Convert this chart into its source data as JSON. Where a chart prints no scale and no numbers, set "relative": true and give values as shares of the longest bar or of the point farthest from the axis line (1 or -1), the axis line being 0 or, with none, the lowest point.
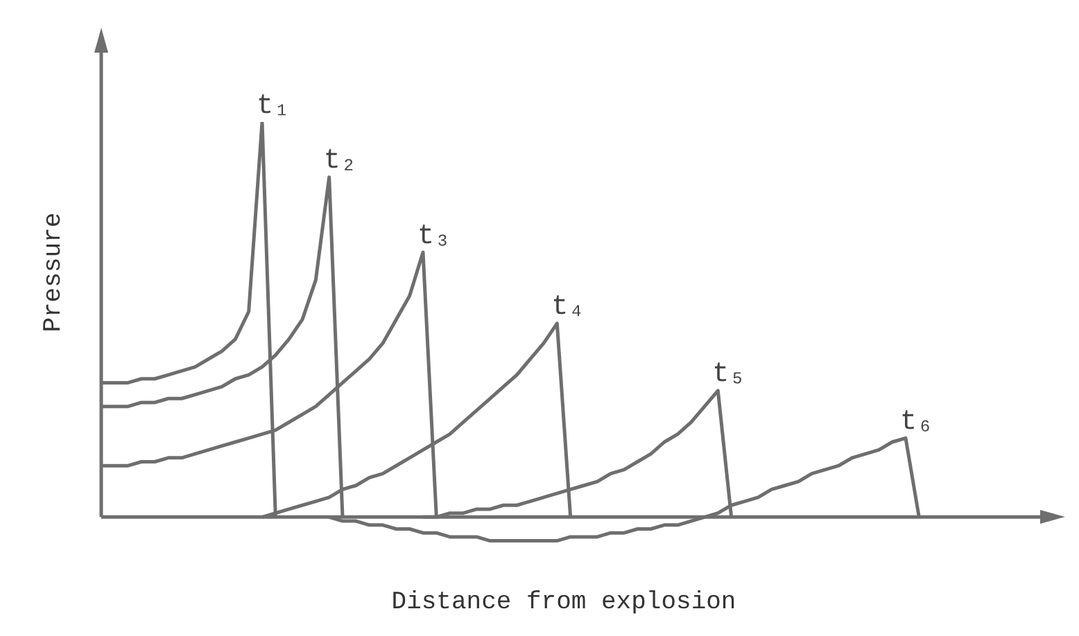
{
  "chart_data": {
    "type": "line",
    "relative": true,
    "xlabel": "Distance from explosion",
    "ylabel": "Pressure",
    "marker": "none",
    "legend": false,
    "categories": [
      null,
      null,
      null,
      null,
      null,
      null,
      null,
      null,
      null,
      null,
      null,
      null,
      null,
      null,
      null,
      null,
      null,
      null,
      null,
      null,
      null,
      null,
      null,
      null,
      null,
      null,
      null,
      null,
      null,
      null,
      null,
      null,
      null,
      null,
      null,
      null,
      null,
      null,
      null,
      null,
      null,
      null,
      null,
      null,
      null,
      null,
      null,
      null,
      null,
      null,
      null,
      null,
      null,
      null,
      null,
      null,
      null,
      null,
      null,
      null,
      null,
      null,
      null,
      null,
      null,
      null,
      null,
      null,
      null,
      null
    ],
    "series": [
      {
        "name": "t₁",
        "color": "#6e6e6e",
        "values": [
          0.34,
          0.34,
          0.34,
          0.35,
          0.35,
          0.36,
          0.37,
          0.38,
          0.4,
          0.42,
          0.45,
          0.52,
          1,
          0,
          null,
          null,
          null,
          null,
          null,
          null,
          null,
          null,
          null,
          null,
          null,
          null,
          null,
          null,
          null,
          null,
          null,
          null,
          null,
          null,
          null,
          null,
          null,
          null,
          null,
          null,
          null,
          null,
          null,
          null,
          null,
          null,
          null,
          null,
          null,
          null,
          null,
          null,
          null,
          null,
          null,
          null,
          null,
          null,
          null,
          null,
          null,
          null,
          null,
          null,
          null,
          null,
          null,
          null,
          null,
          null
        ]
      },
      {
        "name": "t₂",
        "color": "#6e6e6e",
        "values": [
          0.28,
          0.28,
          0.28,
          0.29,
          0.29,
          0.3,
          0.3,
          0.31,
          0.32,
          0.33,
          0.35,
          0.36,
          0.38,
          0.41,
          0.45,
          0.5,
          0.6,
          0.86,
          0,
          null,
          null,
          null,
          null,
          null,
          null,
          null,
          null,
          null,
          null,
          null,
          null,
          null,
          null,
          null,
          null,
          null,
          null,
          null,
          null,
          null,
          null,
          null,
          null,
          null,
          null,
          null,
          null,
          null,
          null,
          null,
          null,
          null,
          null,
          null,
          null,
          null,
          null,
          null,
          null,
          null,
          null,
          null,
          null,
          null,
          null,
          null,
          null,
          null,
          null,
          null
        ]
      },
      {
        "name": "t₃",
        "color": "#6e6e6e",
        "values": [
          0.13,
          0.13,
          0.13,
          0.14,
          0.14,
          0.15,
          0.15,
          0.16,
          0.17,
          0.18,
          0.19,
          0.2,
          0.21,
          0.22,
          0.24,
          0.26,
          0.28,
          0.31,
          0.34,
          0.37,
          0.4,
          0.44,
          0.5,
          0.56,
          0.67,
          0,
          null,
          null,
          null,
          null,
          null,
          null,
          null,
          null,
          null,
          null,
          null,
          null,
          null,
          null,
          null,
          null,
          null,
          null,
          null,
          null,
          null,
          null,
          null,
          null,
          null,
          null,
          null,
          null,
          null,
          null,
          null,
          null,
          null,
          null,
          null,
          null,
          null,
          null,
          null,
          null,
          null,
          null,
          null,
          null
        ]
      },
      {
        "name": "t₄",
        "color": "#6e6e6e",
        "values": [
          null,
          null,
          null,
          null,
          null,
          null,
          null,
          null,
          null,
          null,
          null,
          null,
          0,
          0.01,
          0.02,
          0.03,
          0.04,
          0.05,
          0.07,
          0.08,
          0.1,
          0.11,
          0.13,
          0.15,
          0.17,
          0.19,
          0.21,
          0.24,
          0.27,
          0.3,
          0.33,
          0.36,
          0.4,
          0.44,
          0.49,
          0,
          null,
          null,
          null,
          null,
          null,
          null,
          null,
          null,
          null,
          null,
          null,
          null,
          null,
          null,
          null,
          null,
          null,
          null,
          null,
          null,
          null,
          null,
          null,
          null,
          null,
          null,
          null,
          null,
          null,
          null,
          null,
          null,
          null,
          null
        ]
      },
      {
        "name": "t₅",
        "color": "#6e6e6e",
        "values": [
          null,
          null,
          null,
          null,
          null,
          null,
          null,
          null,
          null,
          null,
          null,
          null,
          null,
          null,
          null,
          null,
          null,
          null,
          null,
          null,
          null,
          null,
          null,
          null,
          0,
          0,
          0.01,
          0.01,
          0.02,
          0.02,
          0.03,
          0.03,
          0.04,
          0.05,
          0.06,
          0.07,
          0.08,
          0.09,
          0.11,
          0.12,
          0.14,
          0.16,
          0.19,
          0.21,
          0.24,
          0.28,
          0.32,
          0,
          null,
          null,
          null,
          null,
          null,
          null,
          null,
          null,
          null,
          null,
          null,
          null,
          null,
          null,
          null,
          null,
          null,
          null,
          null,
          null,
          null,
          null
        ]
      },
      {
        "name": "t₆",
        "color": "#6e6e6e",
        "values": [
          null,
          null,
          null,
          null,
          null,
          null,
          null,
          null,
          null,
          null,
          null,
          null,
          null,
          null,
          null,
          null,
          null,
          0,
          -0.01,
          -0.01,
          -0.02,
          -0.02,
          -0.03,
          -0.03,
          -0.04,
          -0.04,
          -0.05,
          -0.05,
          -0.05,
          -0.06,
          -0.06,
          -0.06,
          -0.06,
          -0.06,
          -0.06,
          -0.05,
          -0.05,
          -0.05,
          -0.04,
          -0.04,
          -0.03,
          -0.03,
          -0.02,
          -0.02,
          -0.01,
          0,
          0.01,
          0.03,
          0.04,
          0.05,
          0.07,
          0.08,
          0.09,
          0.11,
          0.12,
          0.13,
          0.15,
          0.16,
          0.17,
          0.19,
          0.2,
          0,
          null,
          null,
          null,
          null,
          null,
          null,
          null,
          null
        ]
      }
    ]
  }
}
